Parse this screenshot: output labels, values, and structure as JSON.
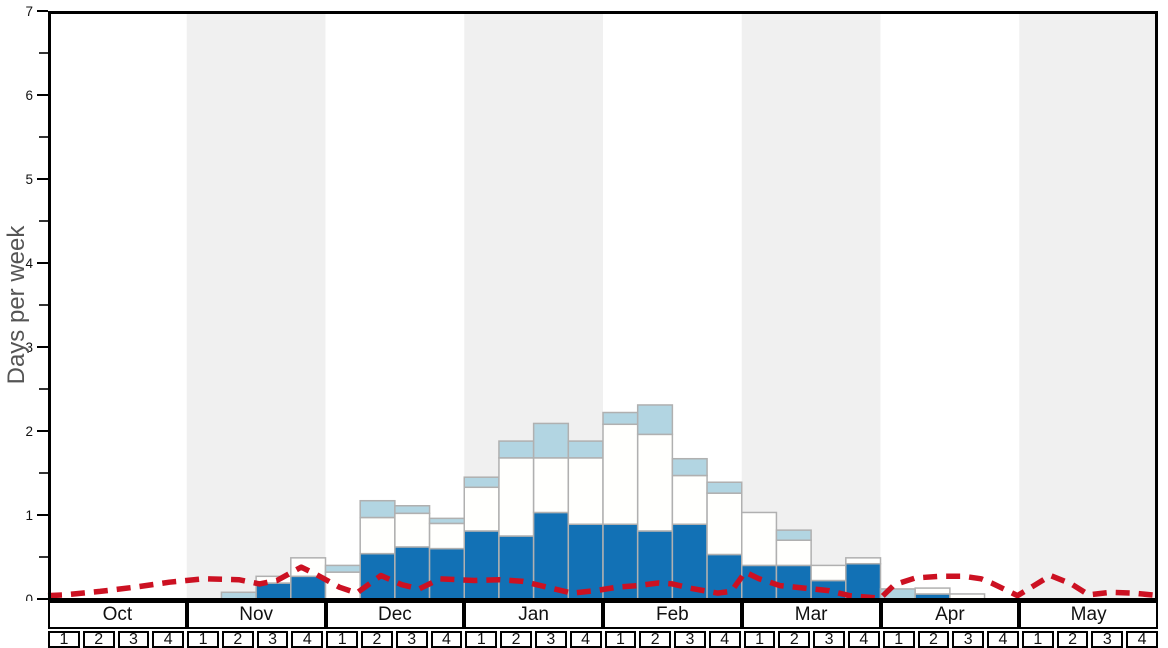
{
  "chart_data": {
    "type": "bar",
    "subtype": "stacked-bars-with-dashed-trend-line",
    "title": "",
    "ylabel": "Days per week",
    "ylim": [
      0,
      7
    ],
    "y_ticks": [
      0,
      1,
      2,
      3,
      4,
      5,
      6,
      7
    ],
    "grid": false,
    "legend": "none",
    "months": [
      {
        "label": "Oct",
        "shaded": false
      },
      {
        "label": "Nov",
        "shaded": true
      },
      {
        "label": "Dec",
        "shaded": false
      },
      {
        "label": "Jan",
        "shaded": true
      },
      {
        "label": "Feb",
        "shaded": false
      },
      {
        "label": "Mar",
        "shaded": true
      },
      {
        "label": "Apr",
        "shaded": false
      },
      {
        "label": "May",
        "shaded": true
      }
    ],
    "weeks_per_month": [
      "1",
      "2",
      "3",
      "4"
    ],
    "categories": [
      "Oct-1",
      "Oct-2",
      "Oct-3",
      "Oct-4",
      "Nov-1",
      "Nov-2",
      "Nov-3",
      "Nov-4",
      "Dec-1",
      "Dec-2",
      "Dec-3",
      "Dec-4",
      "Jan-1",
      "Jan-2",
      "Jan-3",
      "Jan-4",
      "Feb-1",
      "Feb-2",
      "Feb-3",
      "Feb-4",
      "Mar-1",
      "Mar-2",
      "Mar-3",
      "Mar-4",
      "Apr-1",
      "Apr-2",
      "Apr-3",
      "Apr-4",
      "May-1",
      "May-2",
      "May-3",
      "May-4"
    ],
    "series": [
      {
        "name": "dark_blue_segment",
        "values": [
          0,
          0,
          0,
          0,
          0,
          0,
          0.19,
          0.27,
          0,
          0.54,
          0.62,
          0.6,
          0.81,
          0.75,
          1.03,
          0.89,
          0.89,
          0.81,
          0.89,
          0.53,
          0.4,
          0.4,
          0.22,
          0.42,
          0,
          0.06,
          0,
          0,
          0,
          0,
          0,
          0
        ]
      },
      {
        "name": "white_segment",
        "values": [
          0,
          0,
          0,
          0,
          0,
          0,
          0.08,
          0.22,
          0.32,
          0.43,
          0.4,
          0.3,
          0.52,
          0.93,
          0.65,
          0.79,
          1.19,
          1.15,
          0.58,
          0.73,
          0.63,
          0.3,
          0.18,
          0.07,
          0,
          0.07,
          0.06,
          0,
          0,
          0,
          0,
          0
        ]
      },
      {
        "name": "light_blue_segment",
        "values": [
          0,
          0,
          0,
          0,
          0,
          0.08,
          0,
          0,
          0.08,
          0.2,
          0.09,
          0.06,
          0.12,
          0.2,
          0.41,
          0.2,
          0.14,
          0.35,
          0.2,
          0.13,
          0,
          0.12,
          0,
          0,
          0.12,
          0,
          0,
          0,
          0,
          0,
          0,
          0
        ]
      }
    ],
    "trend_line": {
      "style": "dashed",
      "color": "#cc1122",
      "points_week_value": [
        [
          0,
          0.04
        ],
        [
          0.5,
          0.05
        ],
        [
          1.5,
          0.09
        ],
        [
          2.5,
          0.14
        ],
        [
          3.5,
          0.2
        ],
        [
          4.5,
          0.24
        ],
        [
          5.5,
          0.23
        ],
        [
          6.1,
          0.18
        ],
        [
          6.6,
          0.22
        ],
        [
          7.3,
          0.38
        ],
        [
          7.7,
          0.3
        ],
        [
          8.4,
          0.14
        ],
        [
          8.9,
          0.07
        ],
        [
          9.6,
          0.28
        ],
        [
          10.2,
          0.17
        ],
        [
          10.7,
          0.12
        ],
        [
          11.3,
          0.24
        ],
        [
          12.3,
          0.22
        ],
        [
          13.0,
          0.23
        ],
        [
          13.7,
          0.21
        ],
        [
          14.3,
          0.15
        ],
        [
          15.1,
          0.07
        ],
        [
          15.8,
          0.1
        ],
        [
          16.4,
          0.14
        ],
        [
          17.0,
          0.16
        ],
        [
          17.6,
          0.19
        ],
        [
          18.0,
          0.18
        ],
        [
          18.5,
          0.13
        ],
        [
          19.3,
          0.07
        ],
        [
          19.7,
          0.09
        ],
        [
          20.1,
          0.32
        ],
        [
          20.5,
          0.24
        ],
        [
          21.1,
          0.16
        ],
        [
          21.8,
          0.13
        ],
        [
          22.5,
          0.1
        ],
        [
          23.1,
          0.04
        ],
        [
          24.0,
          0.01
        ],
        [
          24.4,
          0.17
        ],
        [
          25.0,
          0.25
        ],
        [
          25.7,
          0.27
        ],
        [
          26.4,
          0.27
        ],
        [
          26.9,
          0.24
        ],
        [
          27.2,
          0.19
        ],
        [
          27.7,
          0.09
        ],
        [
          27.95,
          0.04
        ],
        [
          28.35,
          0.14
        ],
        [
          28.9,
          0.28
        ],
        [
          29.5,
          0.18
        ],
        [
          30.0,
          0.05
        ],
        [
          30.65,
          0.08
        ],
        [
          31.3,
          0.07
        ],
        [
          32,
          0.04
        ]
      ]
    },
    "colors": {
      "dark_blue": "#1271b5",
      "light_blue": "#b2d5e2",
      "white_bar": "#fffffd",
      "bar_border": "#b0b0b0",
      "shaded_band": "#f0f0f0",
      "frame": "#000000",
      "trend": "#cc1122",
      "axis_text": "#111111",
      "ylabel_text": "#555555"
    }
  }
}
